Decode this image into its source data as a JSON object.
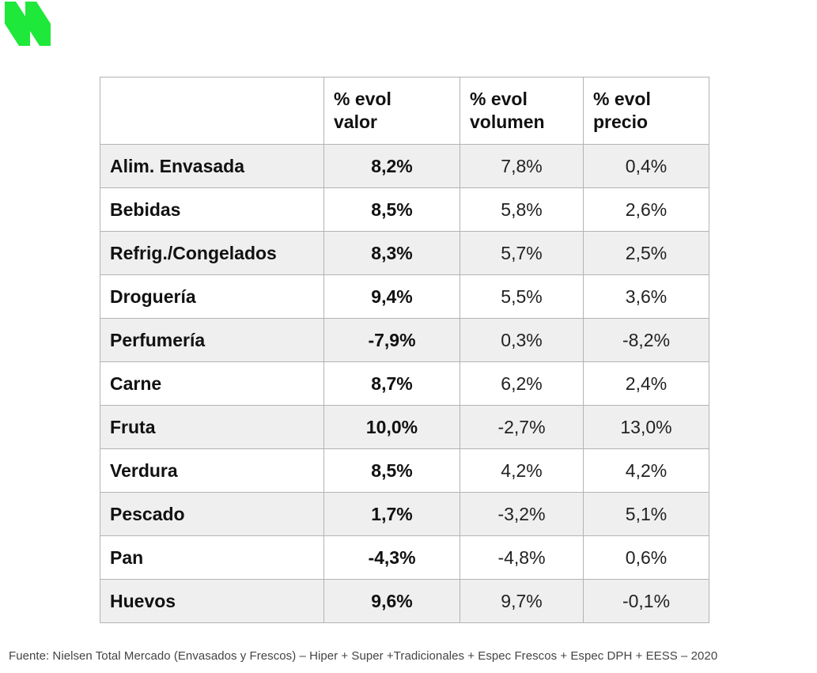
{
  "brand": {
    "logo_color": "#1ee83a"
  },
  "table": {
    "headers": [
      "",
      "% evol\nvalor",
      "% evol\nvolumen",
      "% evol\nprecio"
    ],
    "rows": [
      {
        "category": "Alim. Envasada",
        "valor": "8,2%",
        "volumen": "7,8%",
        "precio": "0,4%"
      },
      {
        "category": "Bebidas",
        "valor": "8,5%",
        "volumen": "5,8%",
        "precio": "2,6%"
      },
      {
        "category": "Refrig./Congelados",
        "valor": "8,3%",
        "volumen": "5,7%",
        "precio": "2,5%"
      },
      {
        "category": "Droguería",
        "valor": "9,4%",
        "volumen": "5,5%",
        "precio": "3,6%"
      },
      {
        "category": "Perfumería",
        "valor": "-7,9%",
        "volumen": "0,3%",
        "precio": "-8,2%"
      },
      {
        "category": "Carne",
        "valor": "8,7%",
        "volumen": "6,2%",
        "precio": "2,4%"
      },
      {
        "category": "Fruta",
        "valor": "10,0%",
        "volumen": "-2,7%",
        "precio": "13,0%"
      },
      {
        "category": "Verdura",
        "valor": "8,5%",
        "volumen": "4,2%",
        "precio": "4,2%"
      },
      {
        "category": "Pescado",
        "valor": "1,7%",
        "volumen": "-3,2%",
        "precio": "5,1%"
      },
      {
        "category": "Pan",
        "valor": "-4,3%",
        "volumen": "-4,8%",
        "precio": "0,6%"
      },
      {
        "category": "Huevos",
        "valor": "9,6%",
        "volumen": "9,7%",
        "precio": "-0,1%"
      }
    ]
  },
  "footer": {
    "source": "Fuente: Nielsen Total Mercado (Envasados y Frescos) – Hiper + Super +Tradicionales +  Espec Frescos + Espec DPH + EESS – 2020"
  }
}
